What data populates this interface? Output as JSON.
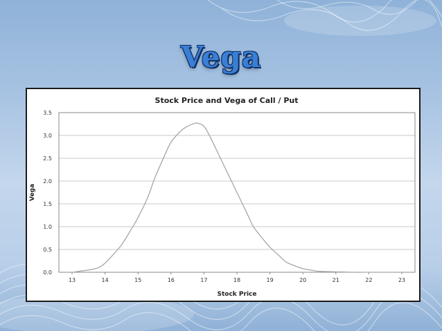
{
  "slide": {
    "title": "Vega"
  },
  "chart_data": {
    "type": "line",
    "title": "Stock Price and Vega of Call / Put",
    "xlabel": "Stock Price",
    "ylabel": "Vega",
    "xlim": [
      12.6,
      23.4
    ],
    "ylim": [
      0,
      3.5
    ],
    "x_ticks": [
      "13",
      "14",
      "15",
      "16",
      "17",
      "18",
      "19",
      "20",
      "21",
      "22",
      "23"
    ],
    "y_ticks": [
      "0.0",
      "0.5",
      "1.0",
      "1.5",
      "2.0",
      "2.5",
      "3.0",
      "3.5"
    ],
    "grid": true,
    "legend": "none",
    "line_color": "#a6a6a6",
    "series": [
      {
        "x": [
          13.0,
          13.5,
          13.8,
          14.0,
          14.2,
          14.5,
          14.8,
          15.0,
          15.3,
          15.5,
          15.8,
          16.0,
          16.3,
          16.5,
          16.7,
          16.8,
          17.0,
          17.2,
          17.5,
          17.8,
          18.0,
          18.3,
          18.5,
          18.8,
          19.0,
          19.3,
          19.5,
          19.8,
          20.0,
          20.3,
          20.5,
          21.0,
          21.5,
          22.0,
          22.5,
          23.0
        ],
        "y": [
          0.0,
          0.05,
          0.1,
          0.2,
          0.35,
          0.6,
          0.95,
          1.2,
          1.65,
          2.05,
          2.55,
          2.85,
          3.1,
          3.2,
          3.26,
          3.27,
          3.2,
          2.95,
          2.5,
          2.05,
          1.75,
          1.3,
          1.0,
          0.72,
          0.55,
          0.35,
          0.22,
          0.13,
          0.08,
          0.04,
          0.02,
          0.01,
          0.0,
          0.0,
          0.0,
          0.0
        ]
      }
    ]
  }
}
